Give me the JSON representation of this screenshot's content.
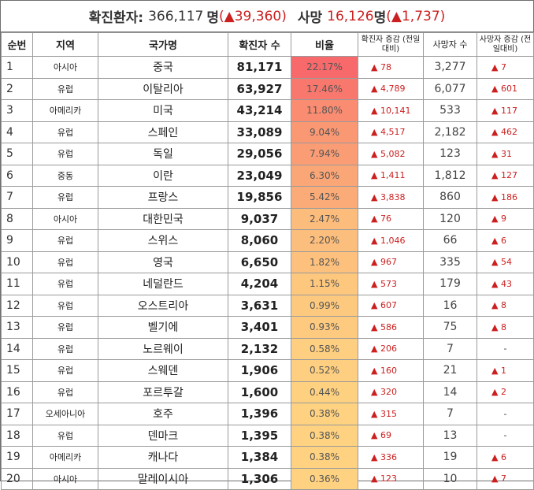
{
  "summary": {
    "confirmed_label": "확진환자:",
    "confirmed_value": "366,117",
    "confirmed_unit": "명",
    "confirmed_change": "(▲39,360)",
    "deaths_label": "사망",
    "deaths_value": "16,126",
    "deaths_unit": "명",
    "deaths_change": "(▲1,737)"
  },
  "table": {
    "headers": {
      "rank": "순번",
      "region": "지역",
      "country": "국가명",
      "cases": "확진자 수",
      "ratio": "비율",
      "case_increase": "확진자 증감 (전일대비)",
      "deaths": "사망자 수",
      "death_increase": "사망자 증감 (전일대비)"
    },
    "rows": [
      {
        "rank": "1",
        "region": "아시아",
        "country": "중국",
        "cases": "81,171",
        "ratio": "22.17%",
        "ratio_value": 22.17,
        "inc": "▲ 78",
        "deaths": "3,277",
        "dinc": "▲ 7"
      },
      {
        "rank": "2",
        "region": "유럽",
        "country": "이탈리아",
        "cases": "63,927",
        "ratio": "17.46%",
        "ratio_value": 17.46,
        "inc": "▲ 4,789",
        "deaths": "6,077",
        "dinc": "▲ 601"
      },
      {
        "rank": "3",
        "region": "아메리카",
        "country": "미국",
        "cases": "43,214",
        "ratio": "11.80%",
        "ratio_value": 11.8,
        "inc": "▲ 10,141",
        "deaths": "533",
        "dinc": "▲ 117"
      },
      {
        "rank": "4",
        "region": "유럽",
        "country": "스페인",
        "cases": "33,089",
        "ratio": "9.04%",
        "ratio_value": 9.04,
        "inc": "▲ 4,517",
        "deaths": "2,182",
        "dinc": "▲ 462"
      },
      {
        "rank": "5",
        "region": "유럽",
        "country": "독일",
        "cases": "29,056",
        "ratio": "7.94%",
        "ratio_value": 7.94,
        "inc": "▲ 5,082",
        "deaths": "123",
        "dinc": "▲ 31"
      },
      {
        "rank": "6",
        "region": "중동",
        "country": "이란",
        "cases": "23,049",
        "ratio": "6.30%",
        "ratio_value": 6.3,
        "inc": "▲ 1,411",
        "deaths": "1,812",
        "dinc": "▲ 127"
      },
      {
        "rank": "7",
        "region": "유럽",
        "country": "프랑스",
        "cases": "19,856",
        "ratio": "5.42%",
        "ratio_value": 5.42,
        "inc": "▲ 3,838",
        "deaths": "860",
        "dinc": "▲ 186"
      },
      {
        "rank": "8",
        "region": "아시아",
        "country": "대한민국",
        "cases": "9,037",
        "ratio": "2.47%",
        "ratio_value": 2.47,
        "inc": "▲ 76",
        "deaths": "120",
        "dinc": "▲ 9"
      },
      {
        "rank": "9",
        "region": "유럽",
        "country": "스위스",
        "cases": "8,060",
        "ratio": "2.20%",
        "ratio_value": 2.2,
        "inc": "▲ 1,046",
        "deaths": "66",
        "dinc": "▲ 6"
      },
      {
        "rank": "10",
        "region": "유럽",
        "country": "영국",
        "cases": "6,650",
        "ratio": "1.82%",
        "ratio_value": 1.82,
        "inc": "▲ 967",
        "deaths": "335",
        "dinc": "▲ 54"
      },
      {
        "rank": "11",
        "region": "유럽",
        "country": "네덜란드",
        "cases": "4,204",
        "ratio": "1.15%",
        "ratio_value": 1.15,
        "inc": "▲ 573",
        "deaths": "179",
        "dinc": "▲ 43"
      },
      {
        "rank": "12",
        "region": "유럽",
        "country": "오스트리아",
        "cases": "3,631",
        "ratio": "0.99%",
        "ratio_value": 0.99,
        "inc": "▲ 607",
        "deaths": "16",
        "dinc": "▲ 8"
      },
      {
        "rank": "13",
        "region": "유럽",
        "country": "벨기에",
        "cases": "3,401",
        "ratio": "0.93%",
        "ratio_value": 0.93,
        "inc": "▲ 586",
        "deaths": "75",
        "dinc": "▲ 8"
      },
      {
        "rank": "14",
        "region": "유럽",
        "country": "노르웨이",
        "cases": "2,132",
        "ratio": "0.58%",
        "ratio_value": 0.58,
        "inc": "▲ 206",
        "deaths": "7",
        "dinc": "-"
      },
      {
        "rank": "15",
        "region": "유럽",
        "country": "스웨덴",
        "cases": "1,906",
        "ratio": "0.52%",
        "ratio_value": 0.52,
        "inc": "▲ 160",
        "deaths": "21",
        "dinc": "▲ 1"
      },
      {
        "rank": "16",
        "region": "유럽",
        "country": "포르투갈",
        "cases": "1,600",
        "ratio": "0.44%",
        "ratio_value": 0.44,
        "inc": "▲ 320",
        "deaths": "14",
        "dinc": "▲ 2"
      },
      {
        "rank": "17",
        "region": "오세아니아",
        "country": "호주",
        "cases": "1,396",
        "ratio": "0.38%",
        "ratio_value": 0.38,
        "inc": "▲ 315",
        "deaths": "7",
        "dinc": "-"
      },
      {
        "rank": "18",
        "region": "유럽",
        "country": "덴마크",
        "cases": "1,395",
        "ratio": "0.38%",
        "ratio_value": 0.38,
        "inc": "▲ 69",
        "deaths": "13",
        "dinc": "-"
      },
      {
        "rank": "19",
        "region": "아메리카",
        "country": "캐나다",
        "cases": "1,384",
        "ratio": "0.38%",
        "ratio_value": 0.38,
        "inc": "▲ 336",
        "deaths": "19",
        "dinc": "▲ 6"
      },
      {
        "rank": "20",
        "region": "아시아",
        "country": "말레이시아",
        "cases": "1,306",
        "ratio": "0.36%",
        "ratio_value": 0.36,
        "inc": "▲ 123",
        "deaths": "10",
        "dinc": "▲ 7"
      }
    ]
  },
  "colors": {
    "increase_red": "#cc1f1f",
    "ratio_high": "#f8696b",
    "ratio_mid": "#fbaa77",
    "ratio_low": "#ffe084"
  }
}
